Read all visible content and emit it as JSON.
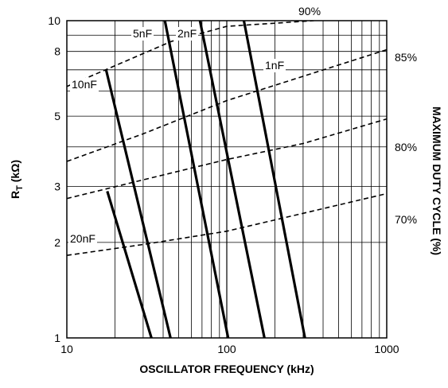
{
  "chart_data": {
    "type": "line",
    "xlabel": "OSCILLATOR FREQUENCY (kHz)",
    "ylabel_main": "R",
    "ylabel_sub": "T",
    "ylabel_unit": " (kΩ)",
    "y2label": "MAXIMUM DUTY CYCLE (%)",
    "xscale": "log",
    "yscale": "log",
    "xlim": [
      10,
      1000
    ],
    "ylim": [
      1,
      10
    ],
    "grid": true,
    "x_major_ticks": [
      10,
      100,
      1000
    ],
    "x_tick_labels": [
      "10",
      "100",
      "1000"
    ],
    "y_major_ticks": [
      1,
      2,
      3,
      5,
      8,
      10
    ],
    "y_tick_labels": [
      "1",
      "2",
      "3",
      "5",
      "8",
      "10"
    ],
    "capacitance_series": [
      {
        "name": "20nF",
        "points": [
          [
            17.9,
            2.9
          ],
          [
            33.8,
            1.0
          ]
        ]
      },
      {
        "name": "10nF",
        "points": [
          [
            17.6,
            7.0
          ],
          [
            44.5,
            1.0
          ]
        ]
      },
      {
        "name": "5nF",
        "points": [
          [
            41.0,
            10.0
          ],
          [
            102,
            1.0
          ]
        ]
      },
      {
        "name": "2nF",
        "points": [
          [
            68.0,
            10.0
          ],
          [
            172,
            1.0
          ]
        ]
      },
      {
        "name": "1nF",
        "points": [
          [
            128,
            10.0
          ],
          [
            308,
            1.0
          ]
        ]
      }
    ],
    "duty_cycle_series": [
      {
        "name": "90%",
        "points": [
          [
            10,
            6.2
          ],
          [
            45,
            8.6
          ],
          [
            100,
            9.6
          ],
          [
            350,
            10.0
          ]
        ]
      },
      {
        "name": "85%",
        "points": [
          [
            10,
            3.6
          ],
          [
            30,
            4.4
          ],
          [
            100,
            5.6
          ],
          [
            1000,
            8.1
          ]
        ]
      },
      {
        "name": "80%",
        "points": [
          [
            10,
            2.75
          ],
          [
            30,
            3.15
          ],
          [
            100,
            3.65
          ],
          [
            300,
            4.1
          ],
          [
            1000,
            4.9
          ]
        ]
      },
      {
        "name": "70%",
        "points": [
          [
            10,
            1.82
          ],
          [
            30,
            1.97
          ],
          [
            100,
            2.17
          ],
          [
            300,
            2.47
          ],
          [
            1000,
            2.85
          ]
        ]
      }
    ]
  }
}
